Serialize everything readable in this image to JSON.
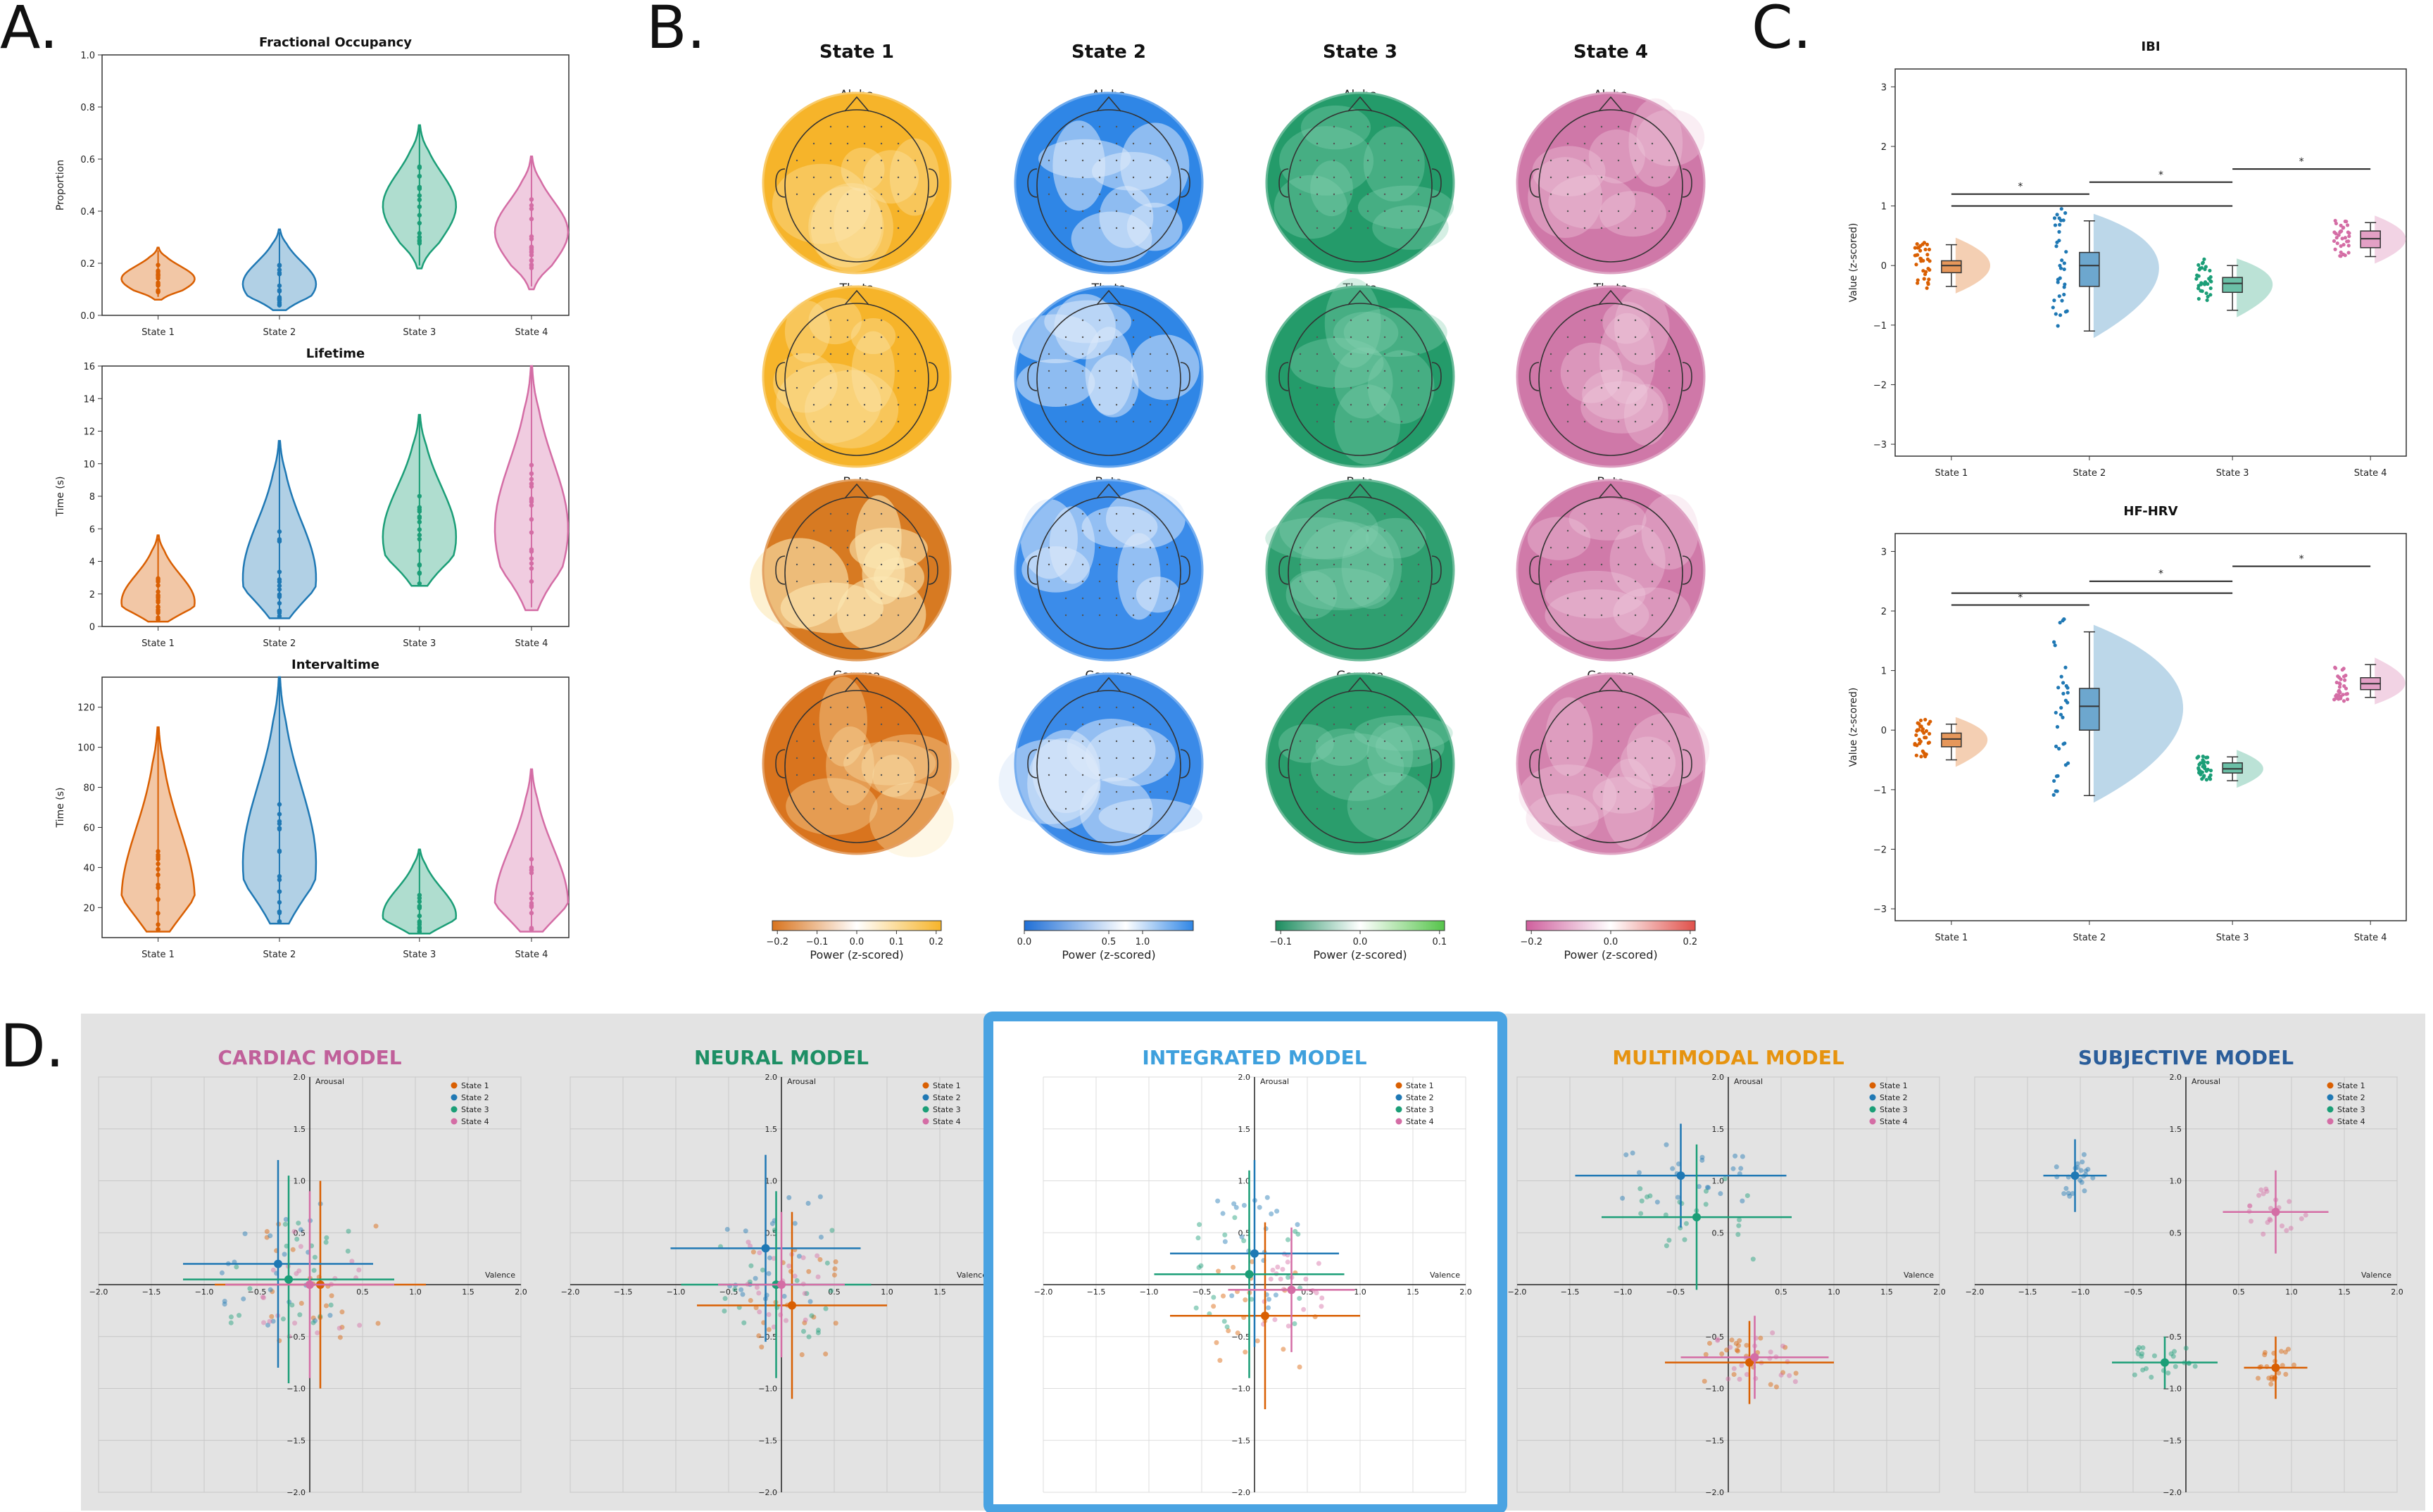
{
  "panels": {
    "A": "A.",
    "B": "B.",
    "C": "C.",
    "D": "D."
  },
  "colors": {
    "State 1": "#d95f02",
    "State 2": "#1f78b4",
    "State 3": "#1b9e77",
    "State 4": "#d46da5"
  },
  "chart_data": [
    {
      "id": "fo",
      "type": "violin",
      "title": "Fractional Occupancy",
      "ylabel": "Proportion",
      "ylim": [
        0,
        1.0
      ],
      "yticks": [
        0.0,
        0.2,
        0.4,
        0.6,
        0.8,
        1.0
      ],
      "ytick_labels": [
        "0.0",
        "0.2",
        "0.4",
        "0.6",
        "0.8",
        "1.0"
      ],
      "categories": [
        "State 1",
        "State 2",
        "State 3",
        "State 4"
      ],
      "series": [
        {
          "name": "State 1",
          "min": 0.06,
          "median": 0.14,
          "max": 0.26
        },
        {
          "name": "State 2",
          "min": 0.02,
          "median": 0.12,
          "max": 0.33
        },
        {
          "name": "State 3",
          "min": 0.18,
          "median": 0.42,
          "max": 0.73
        },
        {
          "name": "State 4",
          "min": 0.1,
          "median": 0.32,
          "max": 0.61
        }
      ]
    },
    {
      "id": "lt",
      "type": "violin",
      "title": "Lifetime",
      "ylabel": "Time (s)",
      "ylim": [
        0,
        16
      ],
      "yticks": [
        0,
        2,
        4,
        6,
        8,
        10,
        12,
        14,
        16
      ],
      "ytick_labels": [
        "0",
        "2",
        "4",
        "6",
        "8",
        "10",
        "12",
        "14",
        "16"
      ],
      "categories": [
        "State 1",
        "State 2",
        "State 3",
        "State 4"
      ],
      "series": [
        {
          "name": "State 1",
          "min": 0.3,
          "median": 1.5,
          "max": 5.6
        },
        {
          "name": "State 2",
          "min": 0.5,
          "median": 3.0,
          "max": 11.4
        },
        {
          "name": "State 3",
          "min": 2.5,
          "median": 5.5,
          "max": 13.0
        },
        {
          "name": "State 4",
          "min": 1.0,
          "median": 6.0,
          "max": 16.0
        }
      ]
    },
    {
      "id": "it",
      "type": "violin",
      "title": "Intervaltime",
      "ylabel": "Time (s)",
      "ylim": [
        5,
        135
      ],
      "yticks": [
        20,
        40,
        60,
        80,
        100,
        120
      ],
      "ytick_labels": [
        "20",
        "40",
        "60",
        "80",
        "100",
        "120"
      ],
      "categories": [
        "State 1",
        "State 2",
        "State 3",
        "State 4"
      ],
      "series": [
        {
          "name": "State 1",
          "min": 8,
          "median": 24,
          "max": 110
        },
        {
          "name": "State 2",
          "min": 12,
          "median": 42,
          "max": 135
        },
        {
          "name": "State 3",
          "min": 7,
          "median": 16,
          "max": 49
        },
        {
          "name": "State 4",
          "min": 8,
          "median": 22,
          "max": 89
        }
      ]
    },
    {
      "id": "ibi",
      "type": "raincloud",
      "title": "IBI",
      "ylabel": "Value (z-scored)",
      "ylim": [
        -3.2,
        3.3
      ],
      "yticks": [
        -3,
        -2,
        -1,
        0,
        1,
        2,
        3
      ],
      "ytick_labels": [
        "−3",
        "−2",
        "−1",
        "0",
        "1",
        "2",
        "3"
      ],
      "categories": [
        "State 1",
        "State 2",
        "State 3",
        "State 4"
      ],
      "series": [
        {
          "name": "State 1",
          "q1": -0.12,
          "median": 0.0,
          "q3": 0.08,
          "lo": -0.35,
          "hi": 0.35
        },
        {
          "name": "State 2",
          "q1": -0.35,
          "median": 0.0,
          "q3": 0.22,
          "lo": -1.1,
          "hi": 0.75
        },
        {
          "name": "State 3",
          "q1": -0.45,
          "median": -0.3,
          "q3": -0.2,
          "lo": -0.75,
          "hi": 0.0
        },
        {
          "name": "State 4",
          "q1": 0.3,
          "median": 0.45,
          "q3": 0.58,
          "lo": 0.15,
          "hi": 0.72
        }
      ],
      "brackets": [
        {
          "from": "State 1",
          "to": "State 2",
          "y": 1.2,
          "label": "*"
        },
        {
          "from": "State 1",
          "to": "State 3",
          "y": 1.0,
          "label": ""
        },
        {
          "from": "State 2",
          "to": "State 3",
          "y": 1.4,
          "label": "*"
        },
        {
          "from": "State 3",
          "to": "State 4",
          "y": 1.62,
          "label": "*"
        }
      ]
    },
    {
      "id": "hrv",
      "type": "raincloud",
      "title": "HF-HRV",
      "ylabel": "Value (z-scored)",
      "ylim": [
        -3.2,
        3.3
      ],
      "yticks": [
        -3,
        -2,
        -1,
        0,
        1,
        2,
        3
      ],
      "ytick_labels": [
        "−3",
        "−2",
        "−1",
        "0",
        "1",
        "2",
        "3"
      ],
      "categories": [
        "State 1",
        "State 2",
        "State 3",
        "State 4"
      ],
      "series": [
        {
          "name": "State 1",
          "q1": -0.28,
          "median": -0.15,
          "q3": -0.05,
          "lo": -0.5,
          "hi": 0.1
        },
        {
          "name": "State 2",
          "q1": 0.0,
          "median": 0.4,
          "q3": 0.7,
          "lo": -1.1,
          "hi": 1.65
        },
        {
          "name": "State 3",
          "q1": -0.72,
          "median": -0.65,
          "q3": -0.55,
          "lo": -0.85,
          "hi": -0.45
        },
        {
          "name": "State 4",
          "q1": 0.68,
          "median": 0.78,
          "q3": 0.88,
          "lo": 0.55,
          "hi": 1.1
        }
      ],
      "brackets": [
        {
          "from": "State 1",
          "to": "State 2",
          "y": 2.1,
          "label": "*"
        },
        {
          "from": "State 1",
          "to": "State 3",
          "y": 2.3,
          "label": ""
        },
        {
          "from": "State 2",
          "to": "State 3",
          "y": 2.5,
          "label": "*"
        },
        {
          "from": "State 3",
          "to": "State 4",
          "y": 2.75,
          "label": "*"
        }
      ]
    },
    {
      "id": "scatter",
      "type": "scatter",
      "models": [
        {
          "name": "CARDIAC MODEL",
          "color": "#c0609a",
          "highlight": false,
          "states": [
            {
              "name": "State 1",
              "x": 0.1,
              "y": 0.0,
              "xerr": 1.0,
              "yerr": 1.0
            },
            {
              "name": "State 2",
              "x": -0.3,
              "y": 0.2,
              "xerr": 0.9,
              "yerr": 1.0
            },
            {
              "name": "State 3",
              "x": -0.2,
              "y": 0.05,
              "xerr": 1.0,
              "yerr": 1.0
            },
            {
              "name": "State 4",
              "x": 0.0,
              "y": 0.0,
              "xerr": 0.8,
              "yerr": 0.9
            }
          ]
        },
        {
          "name": "NEURAL MODEL",
          "color": "#1e8f65",
          "highlight": false,
          "states": [
            {
              "name": "State 1",
              "x": 0.1,
              "y": -0.2,
              "xerr": 0.9,
              "yerr": 0.9
            },
            {
              "name": "State 2",
              "x": -0.15,
              "y": 0.35,
              "xerr": 0.9,
              "yerr": 0.9
            },
            {
              "name": "State 3",
              "x": -0.05,
              "y": 0.0,
              "xerr": 0.9,
              "yerr": 0.9
            },
            {
              "name": "State 4",
              "x": 0.0,
              "y": 0.0,
              "xerr": 0.6,
              "yerr": 0.7
            }
          ]
        },
        {
          "name": "INTEGRATED MODEL",
          "color": "#3ea0dd",
          "highlight": true,
          "states": [
            {
              "name": "State 1",
              "x": 0.1,
              "y": -0.3,
              "xerr": 0.9,
              "yerr": 0.9
            },
            {
              "name": "State 2",
              "x": 0.0,
              "y": 0.3,
              "xerr": 0.8,
              "yerr": 0.9
            },
            {
              "name": "State 3",
              "x": -0.05,
              "y": 0.1,
              "xerr": 0.9,
              "yerr": 1.0
            },
            {
              "name": "State 4",
              "x": 0.35,
              "y": -0.05,
              "xerr": 0.6,
              "yerr": 0.6
            }
          ]
        },
        {
          "name": "MULTIMODAL MODEL",
          "color": "#e6930f",
          "highlight": false,
          "states": [
            {
              "name": "State 1",
              "x": 0.2,
              "y": -0.75,
              "xerr": 0.8,
              "yerr": 0.4
            },
            {
              "name": "State 2",
              "x": -0.45,
              "y": 1.05,
              "xerr": 1.0,
              "yerr": 0.5
            },
            {
              "name": "State 3",
              "x": -0.3,
              "y": 0.65,
              "xerr": 0.9,
              "yerr": 0.7
            },
            {
              "name": "State 4",
              "x": 0.25,
              "y": -0.7,
              "xerr": 0.7,
              "yerr": 0.4
            }
          ]
        },
        {
          "name": "SUBJECTIVE MODEL",
          "color": "#2a5d9a",
          "highlight": false,
          "states": [
            {
              "name": "State 1",
              "x": 0.85,
              "y": -0.8,
              "xerr": 0.3,
              "yerr": 0.3
            },
            {
              "name": "State 2",
              "x": -1.05,
              "y": 1.05,
              "xerr": 0.3,
              "yerr": 0.35
            },
            {
              "name": "State 3",
              "x": -0.2,
              "y": -0.75,
              "xerr": 0.5,
              "yerr": 0.25
            },
            {
              "name": "State 4",
              "x": 0.85,
              "y": 0.7,
              "xerr": 0.5,
              "yerr": 0.4
            }
          ]
        }
      ],
      "xlim": [
        -2.0,
        2.0
      ],
      "ylim": [
        -2.0,
        2.0
      ],
      "ticks": [
        -2.0,
        -1.5,
        -1.0,
        -0.5,
        0.5,
        1.0,
        1.5,
        2.0
      ],
      "tick_labels": [
        "−2.0",
        "−1.5",
        "−1.0",
        "−0.5",
        "0.5",
        "1.0",
        "1.5",
        "2.0"
      ],
      "xlabel": "Valence",
      "ylabel": "Arousal"
    }
  ],
  "topo": {
    "states": [
      "State 1",
      "State 2",
      "State 3",
      "State 4"
    ],
    "bands": [
      "Alpha",
      "Theta",
      "Beta",
      "Gamma"
    ],
    "colorbars": [
      {
        "label": "Power (z-scored)",
        "ticks": [
          "−0.2",
          "−0.1",
          "0.0",
          "0.1",
          "0.2"
        ]
      },
      {
        "label": "Power (z-scored)",
        "ticks": [
          "0.0",
          "0.5",
          "1.0"
        ]
      },
      {
        "label": "Power (z-scored)",
        "ticks": [
          "−0.1",
          "0.0",
          "0.1"
        ]
      },
      {
        "label": "Power (z-scored)",
        "ticks": [
          "−0.2",
          "0.0",
          "0.2"
        ]
      }
    ],
    "palettes": [
      {
        "base": "#f6b42a",
        "light": "#fce7b4",
        "beta": "#d77a22",
        "gamma": "#d9741e"
      },
      {
        "base": "#2f86e6",
        "light": "#ddeafa",
        "beta": "#3b8cea",
        "gamma": "#3a8ae8"
      },
      {
        "base": "#249b6a",
        "light": "#88d0b2",
        "beta": "#2f9f70",
        "gamma": "#2a9d6c"
      },
      {
        "base": "#cf78a8",
        "light": "#f1cde0",
        "beta": "#d07aa9",
        "gamma": "#d483ae"
      }
    ]
  }
}
